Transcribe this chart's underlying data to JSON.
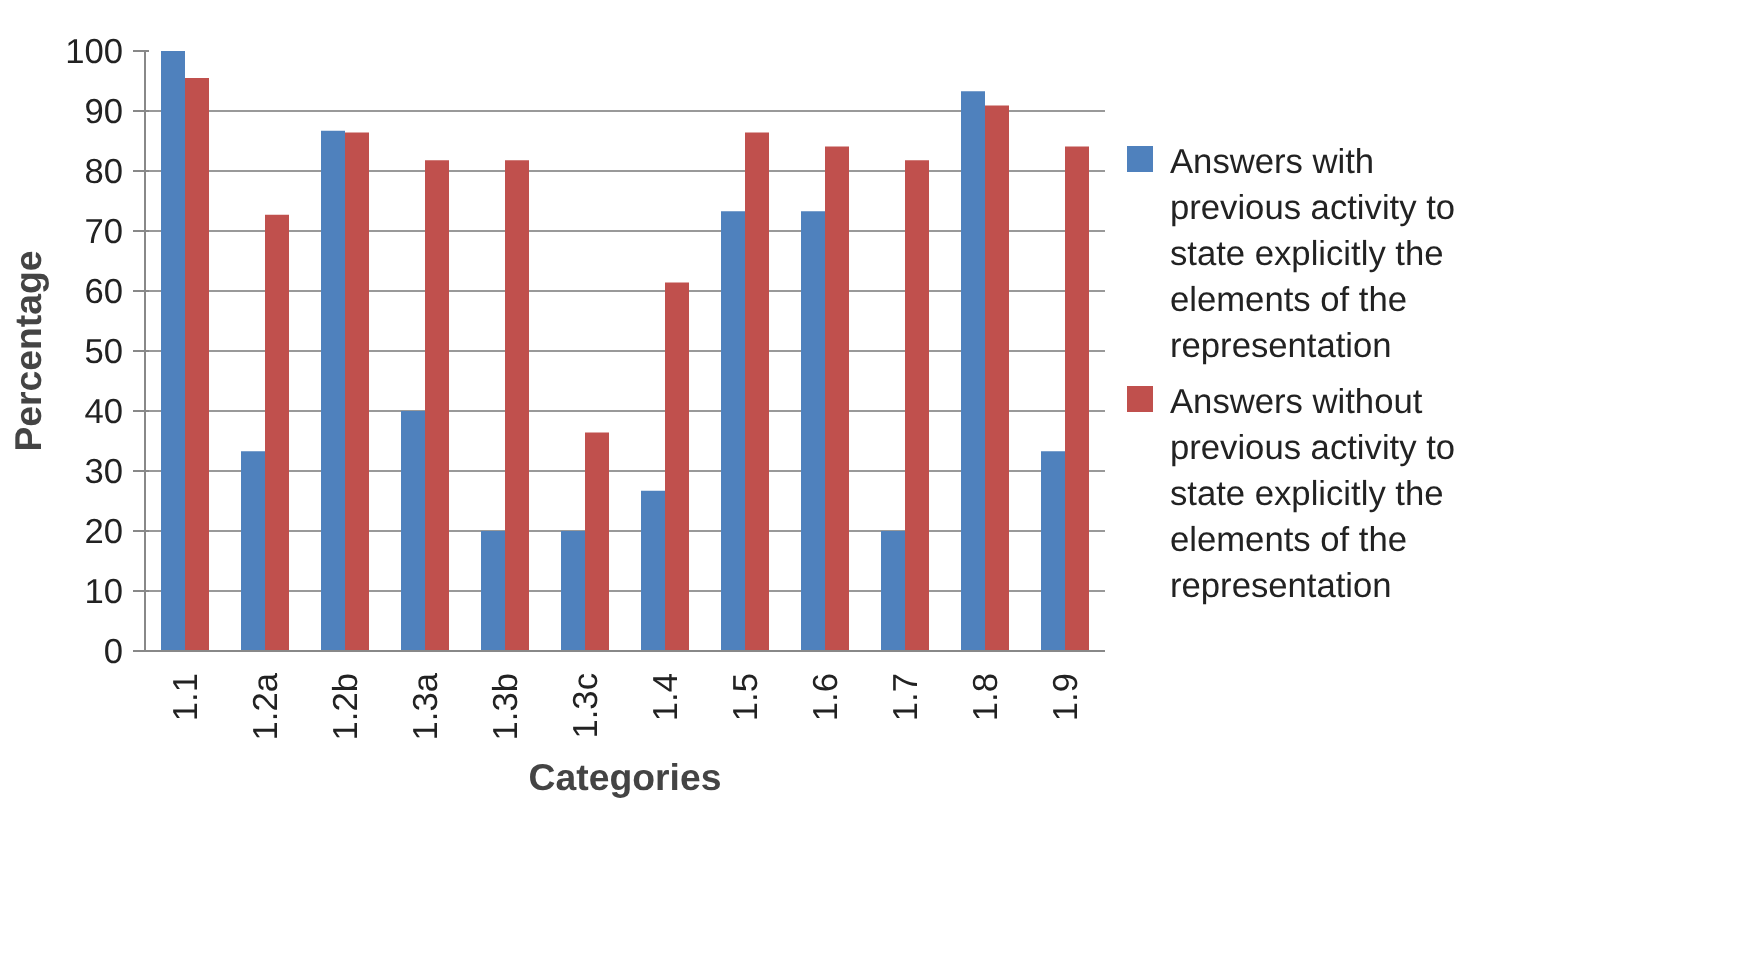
{
  "chart_data": {
    "type": "bar",
    "xlabel": "Categories",
    "ylabel": "Percentage",
    "categories": [
      "1.1",
      "1.2a",
      "1.2b",
      "1.3a",
      "1.3b",
      "1.3c",
      "1.4",
      "1.5",
      "1.6",
      "1.7",
      "1.8",
      "1.9"
    ],
    "series": [
      {
        "name": "Answers with previous activity to state explicitly the elements of the representation",
        "color": "#4f81bd",
        "values": [
          100,
          33.3,
          86.7,
          40,
          20,
          20,
          26.7,
          73.3,
          73.3,
          20,
          93.3,
          33.3
        ]
      },
      {
        "name": "Answers without previous activity to state explicitly the elements of the representation",
        "color": "#c0504d",
        "values": [
          95.5,
          72.7,
          86.4,
          81.8,
          81.8,
          36.4,
          61.4,
          86.4,
          84.1,
          81.8,
          90.9,
          84.1
        ]
      }
    ],
    "ylim": [
      0,
      100
    ],
    "yticks": [
      0,
      10,
      20,
      30,
      40,
      50,
      60,
      70,
      80,
      90,
      100
    ],
    "grid": "y",
    "legend": "right"
  }
}
